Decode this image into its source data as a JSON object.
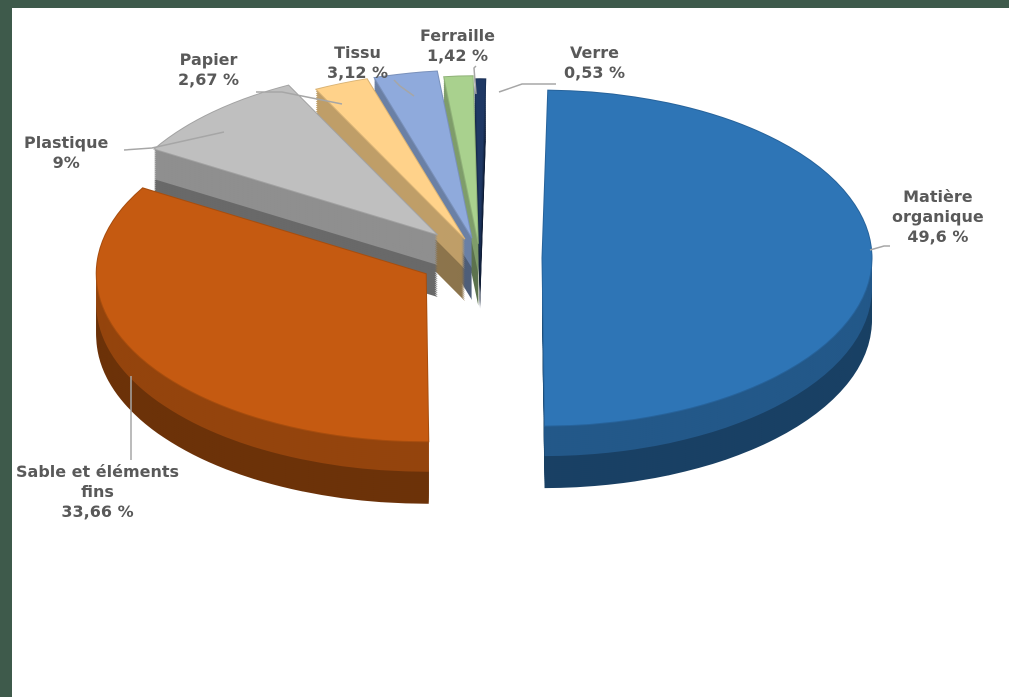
{
  "chart_data": {
    "type": "pie",
    "title": "",
    "slices": [
      {
        "name": "Matière organique",
        "name_lines": [
          "Matière",
          "organique"
        ],
        "value": 49.6,
        "value_label": "49,6 %",
        "color": "#2e75b6"
      },
      {
        "name": "Sable et éléments fins",
        "name_lines": [
          "Sable et éléments",
          "fins"
        ],
        "value": 33.66,
        "value_label": "33,66 %",
        "color": "#c55a11"
      },
      {
        "name": "Plastique",
        "name_lines": [
          "Plastique"
        ],
        "value": 9,
        "value_label": "9%",
        "color": "#bfbfbf"
      },
      {
        "name": "Papier",
        "name_lines": [
          "Papier"
        ],
        "value": 2.67,
        "value_label": "2,67 %",
        "color": "#ffd28a"
      },
      {
        "name": "Tissu",
        "name_lines": [
          "Tissu"
        ],
        "value": 3.12,
        "value_label": "3,12 %",
        "color": "#8faadc"
      },
      {
        "name": "Ferraille",
        "name_lines": [
          "Ferraille"
        ],
        "value": 1.42,
        "value_label": "1,42 %",
        "color": "#a9d18e"
      },
      {
        "name": "Verre",
        "name_lines": [
          "Verre"
        ],
        "value": 0.53,
        "value_label": "0,53 %",
        "color": "#1f3864"
      }
    ],
    "style": "exploded 3D pie",
    "legend": "none",
    "data_labels": "outside with leader lines"
  }
}
